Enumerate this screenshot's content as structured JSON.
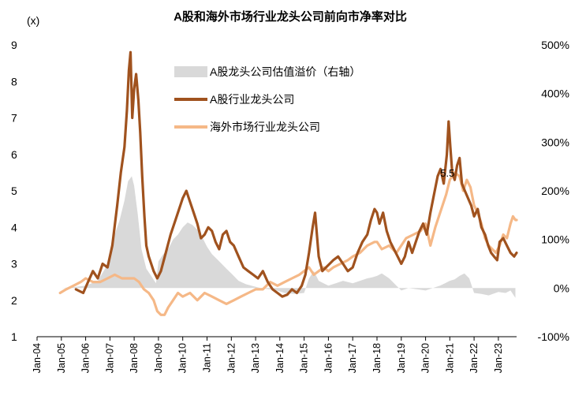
{
  "chart_data": {
    "type": "line",
    "title": "A股和海外市场行业龙头公司前向市净率对比",
    "ylabel_left": "(x)",
    "ylim_left": [
      1,
      9
    ],
    "yticks_left": [
      1,
      2,
      3,
      4,
      5,
      6,
      7,
      8,
      9
    ],
    "ylim_right": [
      -100,
      500
    ],
    "yticks_right": [
      -100,
      0,
      100,
      200,
      300,
      400,
      500
    ],
    "yticks_right_labels": [
      "-100%",
      "0%",
      "100%",
      "200%",
      "300%",
      "400%",
      "500%"
    ],
    "x_tick_labels": [
      "Jan-04",
      "Jan-05",
      "Jan-06",
      "Jan-07",
      "Jan-08",
      "Jan-09",
      "Jan-10",
      "Jan-11",
      "Jan-12",
      "Jan-13",
      "Jan-14",
      "Jan-15",
      "Jan-16",
      "Jan-17",
      "Jan-18",
      "Jan-19",
      "Jan-20",
      "Jan-21",
      "Jan-22",
      "Jan-23"
    ],
    "x_range_years": [
      2004.0,
      2023.75
    ],
    "grid": false,
    "legend_position": "top-center",
    "annotation": {
      "text": "5.5",
      "x": 2021.0,
      "y": 5.5
    },
    "series": [
      {
        "name": "A股龙头公司估值溢价（右轴）",
        "type": "area",
        "axis": "right",
        "color": "#d9d9d9",
        "x": [
          2005.0,
          2005.5,
          2006.0,
          2006.5,
          2006.8,
          2007.0,
          2007.2,
          2007.4,
          2007.6,
          2007.75,
          2007.9,
          2008.0,
          2008.15,
          2008.3,
          2008.5,
          2008.7,
          2008.9,
          2009.0,
          2009.2,
          2009.4,
          2009.6,
          2009.8,
          2010.0,
          2010.2,
          2010.4,
          2010.6,
          2010.8,
          2011.0,
          2011.2,
          2011.4,
          2011.6,
          2011.8,
          2012.0,
          2012.3,
          2012.6,
          2012.9,
          2013.2,
          2013.5,
          2013.8,
          2014.2,
          2014.6,
          2015.0,
          2015.2,
          2015.4,
          2015.6,
          2015.8,
          2016.0,
          2016.3,
          2016.6,
          2017.0,
          2017.3,
          2017.6,
          2017.8,
          2018.0,
          2018.2,
          2018.5,
          2018.8,
          2019.0,
          2019.3,
          2019.6,
          2020.0,
          2020.3,
          2020.6,
          2020.8,
          2021.0,
          2021.2,
          2021.4,
          2021.6,
          2021.8,
          2022.0,
          2022.3,
          2022.6,
          2023.0,
          2023.3,
          2023.5,
          2023.7
        ],
        "values": [
          0,
          2,
          5,
          15,
          40,
          60,
          110,
          140,
          180,
          220,
          230,
          210,
          150,
          80,
          40,
          25,
          10,
          55,
          70,
          80,
          100,
          110,
          125,
          135,
          130,
          120,
          105,
          85,
          70,
          60,
          50,
          40,
          30,
          15,
          8,
          4,
          0,
          -2,
          -4,
          -10,
          -12,
          -10,
          20,
          35,
          15,
          10,
          5,
          10,
          15,
          10,
          15,
          20,
          22,
          25,
          30,
          20,
          5,
          -5,
          0,
          -2,
          -5,
          0,
          5,
          10,
          15,
          18,
          25,
          30,
          20,
          -10,
          -12,
          -15,
          -8,
          -10,
          -5,
          -20
        ]
      },
      {
        "name": "A股行业龙头公司",
        "type": "line",
        "axis": "left",
        "color": "#a0521e",
        "x": [
          2005.6,
          2005.9,
          2006.1,
          2006.3,
          2006.5,
          2006.7,
          2006.9,
          2007.1,
          2007.3,
          2007.45,
          2007.6,
          2007.7,
          2007.78,
          2007.85,
          2007.92,
          2008.0,
          2008.08,
          2008.17,
          2008.25,
          2008.33,
          2008.42,
          2008.5,
          2008.6,
          2008.7,
          2008.8,
          2008.95,
          2009.1,
          2009.3,
          2009.5,
          2009.7,
          2009.85,
          2010.0,
          2010.15,
          2010.3,
          2010.45,
          2010.6,
          2010.75,
          2010.9,
          2011.05,
          2011.2,
          2011.35,
          2011.5,
          2011.65,
          2011.8,
          2011.95,
          2012.1,
          2012.3,
          2012.5,
          2012.7,
          2012.9,
          2013.1,
          2013.3,
          2013.5,
          2013.7,
          2013.9,
          2014.1,
          2014.3,
          2014.5,
          2014.7,
          2014.9,
          2015.05,
          2015.2,
          2015.35,
          2015.45,
          2015.6,
          2015.75,
          2015.9,
          2016.05,
          2016.2,
          2016.4,
          2016.6,
          2016.8,
          2017.0,
          2017.2,
          2017.4,
          2017.6,
          2017.75,
          2017.9,
          2018.0,
          2018.1,
          2018.25,
          2018.4,
          2018.55,
          2018.7,
          2018.85,
          2019.0,
          2019.15,
          2019.3,
          2019.45,
          2019.6,
          2019.75,
          2019.9,
          2020.05,
          2020.2,
          2020.35,
          2020.5,
          2020.62,
          2020.75,
          2020.88,
          2020.95,
          2021.02,
          2021.1,
          2021.2,
          2021.3,
          2021.4,
          2021.5,
          2021.62,
          2021.75,
          2021.88,
          2022.0,
          2022.15,
          2022.3,
          2022.45,
          2022.58,
          2022.7,
          2022.82,
          2022.95,
          2023.05,
          2023.2,
          2023.35,
          2023.5,
          2023.65,
          2023.75
        ],
        "values": [
          2.3,
          2.2,
          2.5,
          2.8,
          2.6,
          3.0,
          2.9,
          3.5,
          4.6,
          5.5,
          6.2,
          7.2,
          8.3,
          8.8,
          7.0,
          7.8,
          8.2,
          7.5,
          6.6,
          5.4,
          4.3,
          3.5,
          3.2,
          3.0,
          2.8,
          2.6,
          2.8,
          3.3,
          3.8,
          4.2,
          4.5,
          4.8,
          5.0,
          4.7,
          4.4,
          4.1,
          3.7,
          3.8,
          4.0,
          3.9,
          3.6,
          3.4,
          3.8,
          3.9,
          3.6,
          3.5,
          3.2,
          2.9,
          2.8,
          2.7,
          2.6,
          2.8,
          2.5,
          2.3,
          2.2,
          2.1,
          2.15,
          2.3,
          2.2,
          2.4,
          2.7,
          3.3,
          4.0,
          4.4,
          3.2,
          2.8,
          2.9,
          3.0,
          3.1,
          3.2,
          3.0,
          2.8,
          2.9,
          3.3,
          3.6,
          3.8,
          4.2,
          4.5,
          4.4,
          4.1,
          4.4,
          3.9,
          3.6,
          3.4,
          3.2,
          3.0,
          3.2,
          3.6,
          3.3,
          3.6,
          3.9,
          4.1,
          3.8,
          4.4,
          4.9,
          5.4,
          5.6,
          5.2,
          6.0,
          6.9,
          6.2,
          5.5,
          5.3,
          5.7,
          5.9,
          5.2,
          5.0,
          4.8,
          4.6,
          4.3,
          4.5,
          4.0,
          3.8,
          3.5,
          3.3,
          3.2,
          3.1,
          3.6,
          3.7,
          3.5,
          3.3,
          3.2,
          3.3
        ]
      },
      {
        "name": "海外市场行业龙头公司",
        "type": "line",
        "axis": "left",
        "color": "#f5b887",
        "x": [
          2004.95,
          2005.2,
          2005.5,
          2005.8,
          2006.0,
          2006.3,
          2006.6,
          2006.9,
          2007.2,
          2007.5,
          2007.8,
          2008.0,
          2008.2,
          2008.4,
          2008.6,
          2008.8,
          2008.95,
          2009.1,
          2009.25,
          2009.4,
          2009.6,
          2009.8,
          2010.0,
          2010.3,
          2010.6,
          2010.9,
          2011.2,
          2011.5,
          2011.8,
          2012.1,
          2012.4,
          2012.7,
          2013.0,
          2013.3,
          2013.6,
          2013.9,
          2014.2,
          2014.5,
          2014.8,
          2015.0,
          2015.2,
          2015.4,
          2015.6,
          2015.8,
          2016.0,
          2016.2,
          2016.5,
          2016.8,
          2017.0,
          2017.3,
          2017.6,
          2017.9,
          2018.0,
          2018.2,
          2018.5,
          2018.8,
          2019.0,
          2019.2,
          2019.5,
          2019.8,
          2020.0,
          2020.2,
          2020.4,
          2020.55,
          2020.7,
          2020.85,
          2021.0,
          2021.2,
          2021.4,
          2021.55,
          2021.7,
          2021.85,
          2022.0,
          2022.15,
          2022.3,
          2022.45,
          2022.6,
          2022.75,
          2022.9,
          2023.05,
          2023.2,
          2023.35,
          2023.5,
          2023.6,
          2023.7,
          2023.75
        ],
        "values": [
          2.2,
          2.3,
          2.4,
          2.5,
          2.6,
          2.5,
          2.5,
          2.6,
          2.7,
          2.6,
          2.6,
          2.6,
          2.5,
          2.3,
          2.2,
          2.0,
          1.7,
          1.6,
          1.6,
          1.8,
          2.0,
          2.2,
          2.1,
          2.2,
          2.0,
          2.2,
          2.1,
          2.0,
          1.9,
          2.0,
          2.1,
          2.2,
          2.3,
          2.3,
          2.5,
          2.4,
          2.5,
          2.6,
          2.7,
          2.8,
          2.9,
          2.7,
          2.8,
          2.9,
          2.8,
          2.9,
          3.0,
          3.1,
          3.2,
          3.3,
          3.5,
          3.6,
          3.6,
          3.4,
          3.5,
          3.3,
          3.5,
          3.7,
          3.8,
          3.9,
          4.1,
          3.5,
          4.0,
          4.3,
          4.6,
          4.9,
          5.3,
          5.5,
          5.4,
          5.0,
          5.3,
          5.1,
          4.6,
          4.4,
          4.1,
          3.7,
          3.5,
          3.4,
          3.3,
          3.5,
          3.8,
          3.7,
          4.1,
          4.3,
          4.2,
          4.2
        ]
      }
    ]
  }
}
